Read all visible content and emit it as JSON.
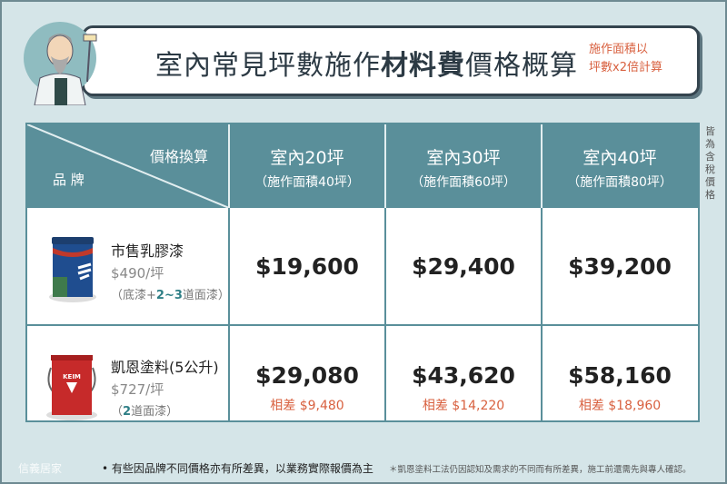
{
  "header": {
    "title_pre": "室內常見坪數施作",
    "title_bold": "材料費",
    "title_post": "價格概算",
    "note_line1": "施作面積以",
    "note_line2": "坪數x2倍計算"
  },
  "table": {
    "corner_top": "價格換算",
    "corner_bottom": "品 牌",
    "columns": [
      {
        "name": "室內20坪",
        "sub": "（施作面積40坪）"
      },
      {
        "name": "室內30坪",
        "sub": "（施作面積60坪）"
      },
      {
        "name": "室內40坪",
        "sub": "（施作面積80坪）"
      }
    ],
    "rows": [
      {
        "brand": "市售乳膠漆",
        "unit_price": "$490/坪",
        "coat_pre": "（底漆+",
        "coat_em": "2~3",
        "coat_post": "道面漆）",
        "prices": [
          "$19,600",
          "$29,400",
          "$39,200"
        ],
        "diffs": []
      },
      {
        "brand": "凱恩塗料(5公升)",
        "unit_price": "$727/坪",
        "coat_pre": "（",
        "coat_em": "2",
        "coat_post": "道面漆）",
        "prices": [
          "$29,080",
          "$43,620",
          "$58,160"
        ],
        "diffs": [
          "相差 $9,480",
          "相差 $14,220",
          "相差 $18,960"
        ]
      }
    ]
  },
  "side_note": "皆為含稅價格",
  "footer": {
    "logo": "信義居家",
    "left": "• 有些因品牌不同價格亦有所差異，以業務實際報價為主",
    "right": "＊凱恩塗料工法仍因認知及需求的不同而有所差異，施工前還需先與專人確認。"
  },
  "colors": {
    "header": "#5a8f9a",
    "accent": "#d8603f",
    "background": "#d5e5e8"
  }
}
